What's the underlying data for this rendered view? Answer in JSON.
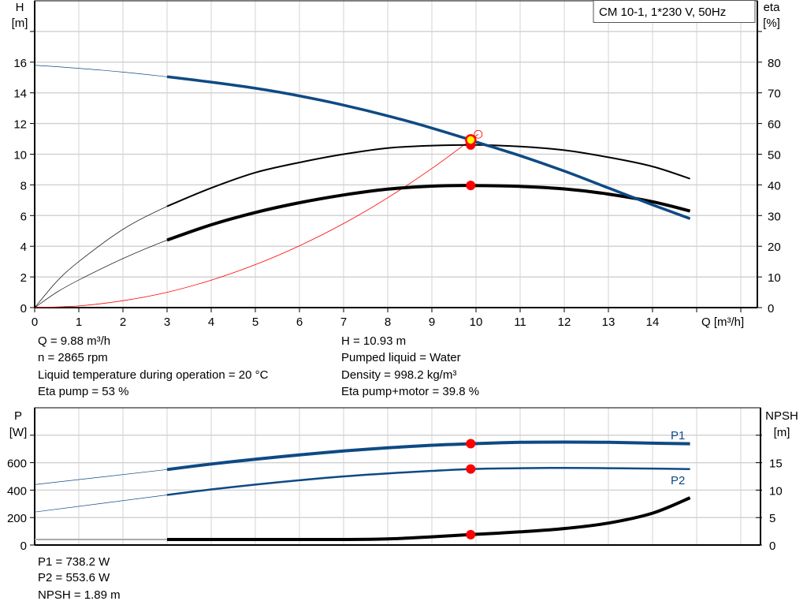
{
  "colors": {
    "head": "#0e4a84",
    "power": "#0e4a84",
    "eta": "#000000",
    "system": "#ff0000",
    "grid": "#d3d3d3",
    "duty_point": "#ff0000",
    "duty_point_fill": "#ffff00"
  },
  "chart_data": [
    {
      "type": "line",
      "legend_box": "CM 10-1, 1*230 V, 50Hz",
      "xlabel": "Q [m³/h]",
      "ylabel_left": {
        "name": "H",
        "unit": "[m]"
      },
      "ylabel_right": {
        "name": "eta",
        "unit": "[%]"
      },
      "xlim": [
        0,
        16.3
      ],
      "ylim_left": [
        0,
        20
      ],
      "ylim_right": [
        0,
        100
      ],
      "x_ticks": [
        0,
        1,
        2,
        3,
        4,
        5,
        6,
        7,
        8,
        9,
        10,
        11,
        12,
        13,
        14
      ],
      "y_ticks_left": [
        0,
        2,
        4,
        6,
        8,
        10,
        12,
        14,
        16
      ],
      "y_ticks_right": [
        0,
        10,
        20,
        30,
        40,
        50,
        60,
        70,
        80
      ],
      "grid": true,
      "series": [
        {
          "id": "H",
          "axis": "left",
          "x": [
            0,
            1,
            2,
            3,
            4,
            5,
            6,
            7,
            8,
            9,
            9.88,
            10,
            11,
            12,
            13,
            14,
            14.85
          ],
          "y": [
            15.8,
            15.6,
            15.35,
            15.05,
            14.7,
            14.3,
            13.8,
            13.2,
            12.5,
            11.7,
            10.93,
            10.8,
            9.9,
            8.9,
            7.8,
            6.7,
            5.8
          ]
        },
        {
          "id": "eta_pump",
          "axis": "right",
          "x": [
            0,
            0.5,
            1,
            2,
            3,
            4,
            5,
            6,
            7,
            8,
            9,
            10,
            11,
            12,
            13,
            14,
            14.85
          ],
          "y": [
            0,
            8.5,
            15,
            25.5,
            33,
            39,
            44,
            47.3,
            50,
            52,
            52.8,
            53,
            52.5,
            51.3,
            49,
            46,
            42
          ]
        },
        {
          "id": "eta_pump_motor",
          "axis": "right",
          "x": [
            0,
            0.5,
            1,
            2,
            3,
            4,
            5,
            6,
            7,
            8,
            9,
            9.88,
            11,
            12,
            13,
            14,
            14.85
          ],
          "y": [
            0,
            5,
            9,
            16,
            22,
            27,
            31,
            34.2,
            36.7,
            38.6,
            39.6,
            39.8,
            39.5,
            38.7,
            37,
            34.5,
            31.5
          ]
        },
        {
          "id": "system",
          "axis": "left",
          "x": [
            0,
            1,
            2,
            3,
            4,
            5,
            6,
            7,
            8,
            9,
            9.88,
            10.05
          ],
          "y": [
            0,
            0.11,
            0.45,
            1.0,
            1.79,
            2.8,
            4.03,
            5.48,
            7.16,
            9.07,
            10.93,
            11.3
          ]
        }
      ],
      "duty_points": [
        {
          "x": 9.88,
          "H": 10.93
        },
        {
          "x": 9.88,
          "eta": 53
        },
        {
          "x": 9.88,
          "eta": 39.8
        }
      ]
    },
    {
      "type": "line",
      "ylabel_left": {
        "name": "P",
        "unit": "[W]"
      },
      "ylabel_right": {
        "name": "NPSH",
        "unit": "[m]"
      },
      "xlim": [
        0,
        16.3
      ],
      "ylim_left": [
        0,
        1000
      ],
      "ylim_right": [
        0,
        25
      ],
      "y_ticks_left": [
        0,
        200,
        400,
        600
      ],
      "y_ticks_right": [
        0,
        5,
        10,
        15
      ],
      "grid": true,
      "series": [
        {
          "id": "P1",
          "name": "P1",
          "axis": "left",
          "x": [
            0,
            3,
            4,
            5,
            6,
            7,
            8,
            9,
            9.88,
            11,
            12,
            13,
            14,
            14.85
          ],
          "y": [
            440,
            550,
            590,
            625,
            657,
            685,
            708,
            727,
            738,
            748,
            750,
            748,
            742,
            738
          ]
        },
        {
          "id": "P2",
          "name": "P2",
          "axis": "left",
          "x": [
            0,
            3,
            4,
            5,
            6,
            7,
            8,
            9,
            9.88,
            11,
            12,
            13,
            14,
            14.85
          ],
          "y": [
            240,
            365,
            405,
            440,
            472,
            500,
            522,
            540,
            553.6,
            560,
            562,
            560,
            557,
            553
          ]
        },
        {
          "id": "NPSH",
          "axis": "right",
          "x": [
            0,
            3,
            5,
            7,
            8,
            9,
            9.88,
            11,
            12,
            13,
            14,
            14.85
          ],
          "y": [
            1.0,
            1.0,
            1.0,
            1.0,
            1.1,
            1.5,
            1.89,
            2.4,
            3.0,
            4.0,
            5.8,
            8.6
          ]
        }
      ],
      "duty_points": [
        {
          "x": 9.88,
          "P": 738.2
        },
        {
          "x": 9.88,
          "P": 553.6
        },
        {
          "x": 9.88,
          "NPSH": 1.89
        }
      ]
    }
  ],
  "results_top": {
    "left": [
      "Q = 9.88 m³/h",
      "n = 2865 rpm",
      "Liquid temperature during operation = 20 °C",
      "Eta pump = 53 %"
    ],
    "right": [
      "H = 10.93 m",
      "Pumped liquid = Water",
      "Density = 998.2 kg/m³",
      "Eta pump+motor = 39.8 %"
    ]
  },
  "results_bottom": [
    "P1 = 738.2 W",
    "P2 = 553.6 W",
    "NPSH = 1.89 m"
  ]
}
